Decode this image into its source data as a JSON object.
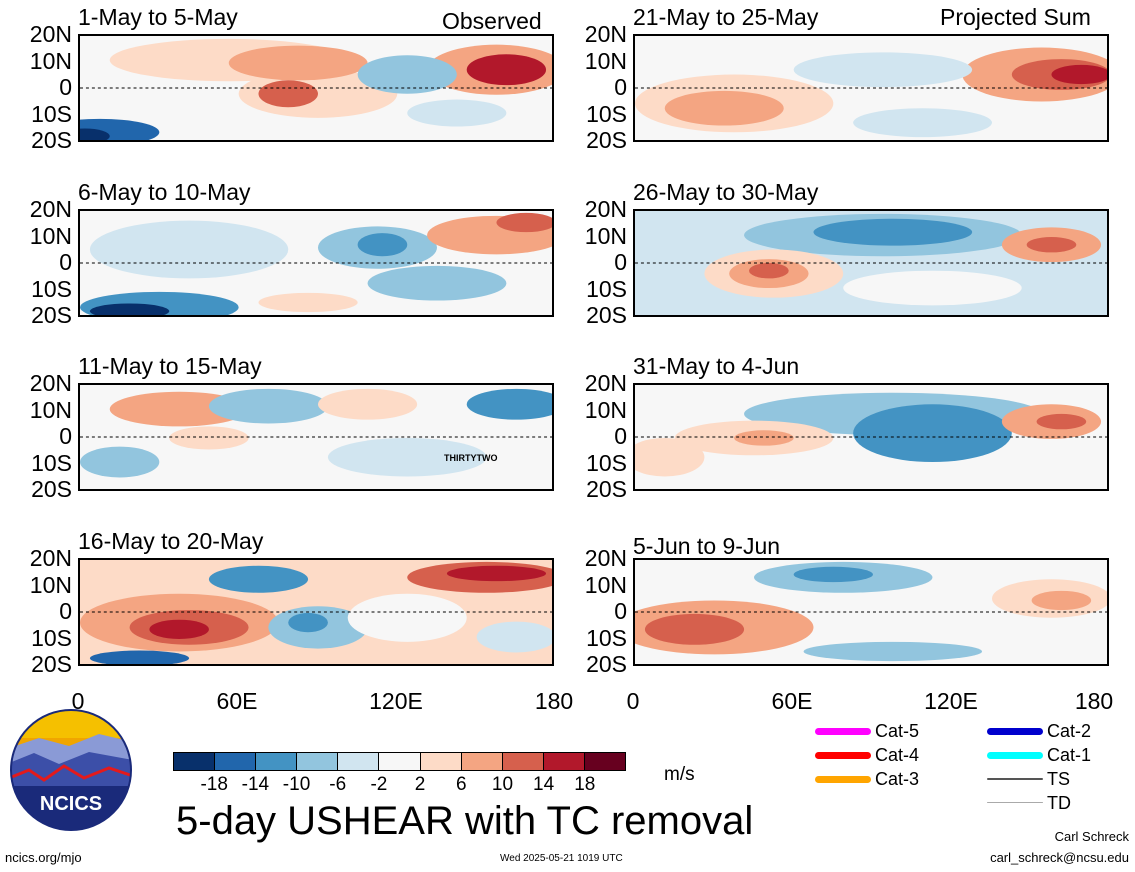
{
  "panels": [
    {
      "id": "p1",
      "title": "1-May to 5-May",
      "tag": "Observed"
    },
    {
      "id": "p2",
      "title": "6-May to 10-May",
      "tag": ""
    },
    {
      "id": "p3",
      "title": "11-May to 15-May",
      "tag": "",
      "storm_label": "THIRTYTWO"
    },
    {
      "id": "p4",
      "title": "16-May to 20-May",
      "tag": ""
    },
    {
      "id": "p5",
      "title": "21-May to 25-May",
      "tag": "Projected Sum"
    },
    {
      "id": "p6",
      "title": "26-May to 30-May",
      "tag": ""
    },
    {
      "id": "p7",
      "title": "31-May to 4-Jun",
      "tag": ""
    },
    {
      "id": "p8",
      "title": "5-Jun to 9-Jun",
      "tag": ""
    }
  ],
  "lat_labels": [
    "20N",
    "10N",
    "0",
    "10S",
    "20S"
  ],
  "lon_labels": [
    "0",
    "60E",
    "120E",
    "180"
  ],
  "colorbar": {
    "ticks": [
      "-18",
      "-14",
      "-10",
      "-6",
      "-2",
      "2",
      "6",
      "10",
      "14",
      "18"
    ],
    "colors": [
      "#08306b",
      "#2166ac",
      "#4393c3",
      "#92c5de",
      "#d1e5f0",
      "#f7f7f7",
      "#fddbc7",
      "#f4a582",
      "#d6604d",
      "#b2182b",
      "#67001f"
    ],
    "units": "m/s"
  },
  "legend": [
    {
      "label": "Cat-5",
      "color": "#ff00ff"
    },
    {
      "label": "Cat-4",
      "color": "#ff0000"
    },
    {
      "label": "Cat-3",
      "color": "#ffa500"
    },
    {
      "label": "Cat-2",
      "color": "#0000cd"
    },
    {
      "label": "Cat-1",
      "color": "#00ffff"
    },
    {
      "label": "TS",
      "color": "#555555"
    },
    {
      "label": "TD",
      "color": "#aaaaaa"
    }
  ],
  "main_title": "5-day USHEAR with TC removal",
  "logo_text": "NCICS",
  "footer": {
    "url": "ncics.org/mjo",
    "timestamp": "Wed 2025-05-21 1019 UTC",
    "author": "Carl Schreck",
    "email": "carl_schreck@ncsu.edu"
  }
}
